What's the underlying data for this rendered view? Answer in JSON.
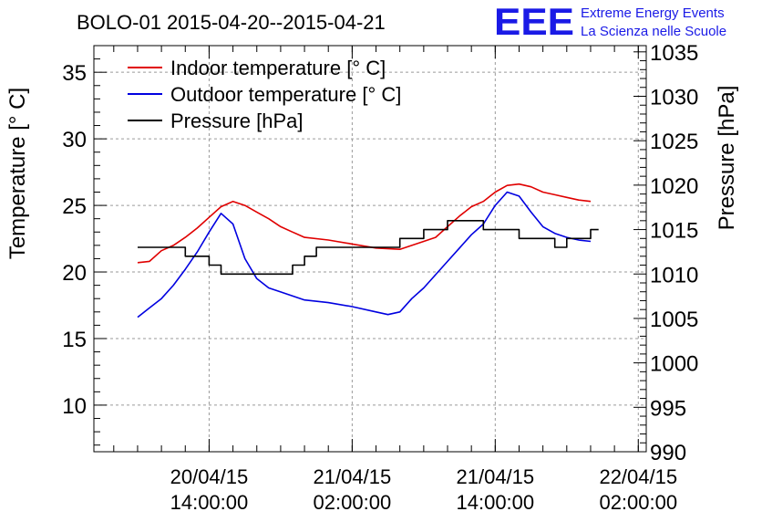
{
  "chart_data": {
    "type": "line",
    "title": "BOLO-01 2015-04-20--2015-04-21",
    "ylabel": "Temperature [° C]",
    "y2label": "Pressure [hPa]",
    "ylim": [
      6.5,
      37
    ],
    "y2lim": [
      990,
      1035.7
    ],
    "yticks": [
      10,
      15,
      20,
      25,
      30,
      35
    ],
    "y2ticks": [
      990,
      995,
      1000,
      1005,
      1010,
      1015,
      1020,
      1025,
      1030,
      1035
    ],
    "xlim": [
      "2015-04-20 04:20",
      "2015-04-22 02:40"
    ],
    "xticks": [
      {
        "date": "2015-04-20 14:00",
        "line1": "20/04/15",
        "line2": "14:00:00"
      },
      {
        "date": "2015-04-21 02:00",
        "line1": "21/04/15",
        "line2": "02:00:00"
      },
      {
        "date": "2015-04-21 14:00",
        "line1": "21/04/15",
        "line2": "14:00:00"
      },
      {
        "date": "2015-04-22 02:00",
        "line1": "22/04/15",
        "line2": "02:00:00"
      }
    ],
    "grid": true,
    "legend_position": "top-left",
    "series": [
      {
        "name": "Indoor temperature [° C]",
        "color": "#e00000",
        "axis": "left",
        "points": [
          [
            "2015-04-20 08:00",
            20.7
          ],
          [
            "2015-04-20 09:00",
            20.8
          ],
          [
            "2015-04-20 10:00",
            21.6
          ],
          [
            "2015-04-20 11:00",
            22.0
          ],
          [
            "2015-04-20 12:00",
            22.6
          ],
          [
            "2015-04-20 13:00",
            23.3
          ],
          [
            "2015-04-20 14:00",
            24.1
          ],
          [
            "2015-04-20 15:00",
            24.9
          ],
          [
            "2015-04-20 16:00",
            25.3
          ],
          [
            "2015-04-20 17:00",
            25.0
          ],
          [
            "2015-04-20 18:00",
            24.5
          ],
          [
            "2015-04-20 19:00",
            24.0
          ],
          [
            "2015-04-20 20:00",
            23.4
          ],
          [
            "2015-04-20 21:00",
            23.0
          ],
          [
            "2015-04-20 22:00",
            22.6
          ],
          [
            "2015-04-21 00:00",
            22.4
          ],
          [
            "2015-04-21 02:00",
            22.1
          ],
          [
            "2015-04-21 04:00",
            21.8
          ],
          [
            "2015-04-21 06:00",
            21.7
          ],
          [
            "2015-04-21 07:00",
            22.0
          ],
          [
            "2015-04-21 08:00",
            22.3
          ],
          [
            "2015-04-21 09:00",
            22.6
          ],
          [
            "2015-04-21 10:00",
            23.4
          ],
          [
            "2015-04-21 11:00",
            24.2
          ],
          [
            "2015-04-21 12:00",
            24.9
          ],
          [
            "2015-04-21 13:00",
            25.3
          ],
          [
            "2015-04-21 14:00",
            26.0
          ],
          [
            "2015-04-21 15:00",
            26.5
          ],
          [
            "2015-04-21 16:00",
            26.6
          ],
          [
            "2015-04-21 17:00",
            26.4
          ],
          [
            "2015-04-21 18:00",
            26.0
          ],
          [
            "2015-04-21 19:00",
            25.8
          ],
          [
            "2015-04-21 20:00",
            25.6
          ],
          [
            "2015-04-21 21:00",
            25.4
          ],
          [
            "2015-04-21 22:00",
            25.3
          ]
        ]
      },
      {
        "name": "Outdoor temperature [° C]",
        "color": "#0000e0",
        "axis": "left",
        "points": [
          [
            "2015-04-20 08:00",
            16.6
          ],
          [
            "2015-04-20 09:00",
            17.3
          ],
          [
            "2015-04-20 10:00",
            18.0
          ],
          [
            "2015-04-20 11:00",
            19.0
          ],
          [
            "2015-04-20 12:00",
            20.2
          ],
          [
            "2015-04-20 13:00",
            21.5
          ],
          [
            "2015-04-20 14:00",
            23.0
          ],
          [
            "2015-04-20 15:00",
            24.4
          ],
          [
            "2015-04-20 16:00",
            23.6
          ],
          [
            "2015-04-20 17:00",
            21.0
          ],
          [
            "2015-04-20 18:00",
            19.5
          ],
          [
            "2015-04-20 19:00",
            18.8
          ],
          [
            "2015-04-20 20:00",
            18.5
          ],
          [
            "2015-04-20 22:00",
            17.9
          ],
          [
            "2015-04-21 00:00",
            17.7
          ],
          [
            "2015-04-21 02:00",
            17.4
          ],
          [
            "2015-04-21 04:00",
            17.0
          ],
          [
            "2015-04-21 05:00",
            16.8
          ],
          [
            "2015-04-21 06:00",
            17.0
          ],
          [
            "2015-04-21 07:00",
            18.0
          ],
          [
            "2015-04-21 08:00",
            18.8
          ],
          [
            "2015-04-21 09:00",
            19.8
          ],
          [
            "2015-04-21 10:00",
            20.8
          ],
          [
            "2015-04-21 11:00",
            21.8
          ],
          [
            "2015-04-21 12:00",
            22.8
          ],
          [
            "2015-04-21 13:00",
            23.6
          ],
          [
            "2015-04-21 14:00",
            25.0
          ],
          [
            "2015-04-21 15:00",
            26.0
          ],
          [
            "2015-04-21 16:00",
            25.7
          ],
          [
            "2015-04-21 17:00",
            24.5
          ],
          [
            "2015-04-21 18:00",
            23.4
          ],
          [
            "2015-04-21 19:00",
            22.9
          ],
          [
            "2015-04-21 20:00",
            22.6
          ],
          [
            "2015-04-21 21:00",
            22.4
          ],
          [
            "2015-04-21 22:00",
            22.3
          ]
        ]
      },
      {
        "name": "Pressure [hPa]",
        "color": "#000000",
        "axis": "right",
        "step": true,
        "points": [
          [
            "2015-04-20 08:00",
            1013.0
          ],
          [
            "2015-04-20 12:00",
            1012.0
          ],
          [
            "2015-04-20 14:00",
            1011.0
          ],
          [
            "2015-04-20 15:00",
            1010.0
          ],
          [
            "2015-04-20 21:00",
            1011.0
          ],
          [
            "2015-04-20 22:00",
            1012.0
          ],
          [
            "2015-04-20 23:00",
            1013.0
          ],
          [
            "2015-04-21 06:00",
            1014.0
          ],
          [
            "2015-04-21 08:00",
            1015.0
          ],
          [
            "2015-04-21 10:00",
            1016.0
          ],
          [
            "2015-04-21 13:00",
            1015.0
          ],
          [
            "2015-04-21 16:00",
            1014.0
          ],
          [
            "2015-04-21 19:00",
            1013.0
          ],
          [
            "2015-04-21 20:00",
            1014.0
          ],
          [
            "2015-04-21 22:00",
            1015.0
          ],
          [
            "2015-04-21 22:40",
            1015.0
          ]
        ]
      }
    ]
  },
  "logo": {
    "mark": "EEE",
    "line1": "Extreme Energy Events",
    "line2": "La Scienza nelle Scuole",
    "color": "#1a1ae6"
  }
}
